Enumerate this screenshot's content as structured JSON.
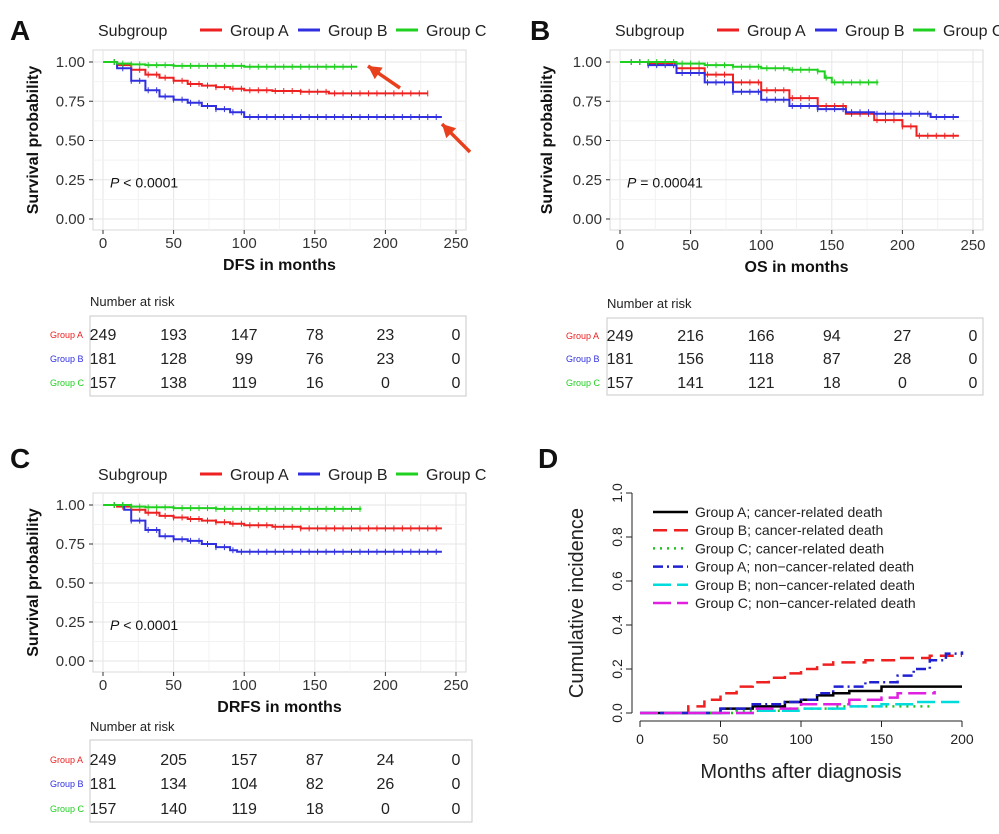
{
  "chart_data": [
    {
      "panel": "A",
      "type": "line",
      "title": "",
      "legend_title": "Subgroup",
      "legend_position": "top",
      "xlabel": "DFS in months",
      "ylabel": "Survival probability",
      "xlim": [
        0,
        250
      ],
      "ylim": [
        0,
        1
      ],
      "xticks": [
        "0",
        "50",
        "100",
        "150",
        "200",
        "250"
      ],
      "yticks": [
        "0.00",
        "0.25",
        "0.50",
        "0.75",
        "1.00"
      ],
      "annotation": {
        "p_label": "P",
        "p_text": " < 0.0001"
      },
      "arrows": "two red arrows pointing at Group C and Group B curve ends",
      "series": [
        {
          "name": "Group A",
          "color": "#ee2020",
          "x": [
            0,
            5,
            10,
            20,
            30,
            40,
            50,
            60,
            70,
            80,
            90,
            100,
            120,
            140,
            160,
            180,
            200,
            230
          ],
          "y": [
            1.0,
            1.0,
            0.98,
            0.95,
            0.92,
            0.9,
            0.88,
            0.86,
            0.85,
            0.84,
            0.83,
            0.82,
            0.815,
            0.81,
            0.8,
            0.8,
            0.8,
            0.8
          ]
        },
        {
          "name": "Group B",
          "color": "#3030e0",
          "x": [
            0,
            5,
            10,
            20,
            30,
            40,
            50,
            60,
            70,
            80,
            90,
            100,
            120,
            150,
            200,
            240
          ],
          "y": [
            1.0,
            1.0,
            0.96,
            0.88,
            0.82,
            0.78,
            0.76,
            0.74,
            0.72,
            0.7,
            0.68,
            0.65,
            0.65,
            0.65,
            0.65,
            0.65
          ]
        },
        {
          "name": "Group C",
          "color": "#20d020",
          "x": [
            0,
            5,
            10,
            20,
            30,
            50,
            80,
            100,
            150,
            180
          ],
          "y": [
            1.0,
            1.0,
            0.99,
            0.985,
            0.98,
            0.975,
            0.975,
            0.97,
            0.97,
            0.97
          ]
        }
      ],
      "risk_table": {
        "header": "Number at risk",
        "rows": [
          {
            "label": "Group A",
            "color": "#ee2020",
            "values": [
              "249",
              "193",
              "147",
              "78",
              "23",
              "0"
            ]
          },
          {
            "label": "Group B",
            "color": "#3030e0",
            "values": [
              "181",
              "128",
              "99",
              "76",
              "23",
              "0"
            ]
          },
          {
            "label": "Group C",
            "color": "#20d020",
            "values": [
              "157",
              "138",
              "119",
              "16",
              "0",
              "0"
            ]
          }
        ]
      }
    },
    {
      "panel": "B",
      "type": "line",
      "title": "",
      "legend_title": "Subgroup",
      "legend_position": "top",
      "xlabel": "OS in months",
      "ylabel": "Survival probability",
      "xlim": [
        0,
        250
      ],
      "ylim": [
        0,
        1
      ],
      "xticks": [
        "0",
        "50",
        "100",
        "150",
        "200",
        "250"
      ],
      "yticks": [
        "0.00",
        "0.25",
        "0.50",
        "0.75",
        "1.00"
      ],
      "annotation": {
        "p_label": "P",
        "p_text": " = 0.00041"
      },
      "series": [
        {
          "name": "Group A",
          "color": "#ee2020",
          "x": [
            0,
            20,
            40,
            60,
            80,
            100,
            120,
            140,
            160,
            180,
            200,
            210,
            220,
            240
          ],
          "y": [
            1.0,
            0.99,
            0.96,
            0.92,
            0.87,
            0.82,
            0.77,
            0.72,
            0.67,
            0.63,
            0.59,
            0.53,
            0.53,
            0.53
          ]
        },
        {
          "name": "Group B",
          "color": "#3030e0",
          "x": [
            0,
            20,
            40,
            60,
            80,
            100,
            120,
            140,
            160,
            180,
            200,
            220,
            240
          ],
          "y": [
            1.0,
            0.98,
            0.93,
            0.87,
            0.81,
            0.76,
            0.72,
            0.7,
            0.68,
            0.67,
            0.67,
            0.65,
            0.65
          ]
        },
        {
          "name": "Group C",
          "color": "#20d020",
          "x": [
            0,
            20,
            40,
            60,
            80,
            100,
            120,
            140,
            145,
            150,
            160,
            183
          ],
          "y": [
            1.0,
            1.0,
            0.99,
            0.98,
            0.97,
            0.96,
            0.95,
            0.94,
            0.9,
            0.87,
            0.87,
            0.87
          ]
        }
      ],
      "risk_table": {
        "header": "Number at risk",
        "rows": [
          {
            "label": "Group A",
            "color": "#ee2020",
            "values": [
              "249",
              "216",
              "166",
              "94",
              "27",
              "0"
            ]
          },
          {
            "label": "Group B",
            "color": "#3030e0",
            "values": [
              "181",
              "156",
              "118",
              "87",
              "28",
              "0"
            ]
          },
          {
            "label": "Group C",
            "color": "#20d020",
            "values": [
              "157",
              "141",
              "121",
              "18",
              "0",
              "0"
            ]
          }
        ]
      }
    },
    {
      "panel": "C",
      "type": "line",
      "title": "",
      "legend_title": "Subgroup",
      "legend_position": "top",
      "xlabel": "DRFS in months",
      "ylabel": "Survival probability",
      "xlim": [
        0,
        250
      ],
      "ylim": [
        0,
        1
      ],
      "xticks": [
        "0",
        "50",
        "100",
        "150",
        "200",
        "250"
      ],
      "yticks": [
        "0.00",
        "0.25",
        "0.50",
        "0.75",
        "1.00"
      ],
      "annotation": {
        "p_label": "P",
        "p_text": " < 0.0001"
      },
      "series": [
        {
          "name": "Group A",
          "color": "#ee2020",
          "x": [
            0,
            10,
            20,
            30,
            40,
            50,
            60,
            70,
            80,
            90,
            100,
            120,
            140,
            160,
            200,
            240
          ],
          "y": [
            1.0,
            0.99,
            0.97,
            0.95,
            0.93,
            0.92,
            0.91,
            0.9,
            0.89,
            0.88,
            0.87,
            0.86,
            0.85,
            0.85,
            0.85,
            0.85
          ]
        },
        {
          "name": "Group B",
          "color": "#3030e0",
          "x": [
            0,
            10,
            15,
            20,
            30,
            40,
            50,
            60,
            70,
            80,
            90,
            95,
            100,
            150,
            200,
            240
          ],
          "y": [
            1.0,
            1.0,
            0.97,
            0.9,
            0.84,
            0.8,
            0.78,
            0.77,
            0.75,
            0.73,
            0.71,
            0.7,
            0.7,
            0.7,
            0.7,
            0.7
          ]
        },
        {
          "name": "Group C",
          "color": "#20d020",
          "x": [
            0,
            10,
            20,
            30,
            50,
            80,
            100,
            150,
            183
          ],
          "y": [
            1.0,
            1.0,
            0.99,
            0.985,
            0.98,
            0.975,
            0.975,
            0.975,
            0.975
          ]
        }
      ],
      "risk_table": {
        "header": "Number at risk",
        "rows": [
          {
            "label": "Group A",
            "color": "#ee2020",
            "values": [
              "249",
              "205",
              "157",
              "87",
              "24",
              "0"
            ]
          },
          {
            "label": "Group B",
            "color": "#3030e0",
            "values": [
              "181",
              "134",
              "104",
              "82",
              "26",
              "0"
            ]
          },
          {
            "label": "Group C",
            "color": "#20d020",
            "values": [
              "157",
              "140",
              "119",
              "18",
              "0",
              "0"
            ]
          }
        ]
      }
    },
    {
      "panel": "D",
      "type": "line",
      "title": "",
      "legend_position": "top-left",
      "xlabel": "Months after diagnosis",
      "ylabel": "Cumulative incidence",
      "xlim": [
        0,
        200
      ],
      "ylim": [
        0,
        1
      ],
      "xticks": [
        "0",
        "50",
        "100",
        "150",
        "200"
      ],
      "yticks": [
        "0.0",
        "0.2",
        "0.4",
        "0.6",
        "0.8",
        "1.0"
      ],
      "series": [
        {
          "name": "Group A; cancer-related death",
          "color": "#000000",
          "dash": "solid",
          "x": [
            0,
            30,
            50,
            70,
            90,
            100,
            110,
            120,
            130,
            150,
            200
          ],
          "y": [
            0,
            0.0,
            0.02,
            0.03,
            0.05,
            0.06,
            0.08,
            0.09,
            0.1,
            0.12,
            0.12
          ]
        },
        {
          "name": "Group B; cancer-related death",
          "color": "#ee2020",
          "dash": "long",
          "x": [
            0,
            20,
            30,
            40,
            50,
            60,
            70,
            80,
            90,
            100,
            110,
            120,
            140,
            160,
            180,
            200
          ],
          "y": [
            0,
            0.0,
            0.03,
            0.06,
            0.09,
            0.12,
            0.14,
            0.16,
            0.18,
            0.2,
            0.22,
            0.23,
            0.24,
            0.25,
            0.26,
            0.26
          ]
        },
        {
          "name": "Group C; cancer-related death",
          "color": "#20c020",
          "dash": "dot",
          "x": [
            0,
            40,
            60,
            90,
            120,
            150,
            180
          ],
          "y": [
            0,
            0.0,
            0.01,
            0.02,
            0.03,
            0.03,
            0.03
          ]
        },
        {
          "name": "Group A; non−cancer-related death",
          "color": "#2020d0",
          "dash": "dashdot",
          "x": [
            0,
            30,
            50,
            70,
            90,
            100,
            110,
            120,
            140,
            160,
            170,
            180,
            190,
            200
          ],
          "y": [
            0,
            0.0,
            0.02,
            0.04,
            0.05,
            0.06,
            0.09,
            0.12,
            0.14,
            0.17,
            0.2,
            0.24,
            0.27,
            0.28
          ]
        },
        {
          "name": "Group B; non−cancer-related death",
          "color": "#00dcdc",
          "dash": "longdash",
          "x": [
            0,
            40,
            70,
            100,
            130,
            150,
            170,
            200
          ],
          "y": [
            0,
            0.0,
            0.01,
            0.02,
            0.03,
            0.04,
            0.05,
            0.06
          ]
        },
        {
          "name": "Group C; non−cancer-related death",
          "color": "#e020e0",
          "dash": "longdash",
          "x": [
            0,
            40,
            70,
            100,
            130,
            150,
            160,
            183
          ],
          "y": [
            0,
            0.0,
            0.02,
            0.04,
            0.06,
            0.07,
            0.09,
            0.1
          ]
        }
      ]
    }
  ]
}
